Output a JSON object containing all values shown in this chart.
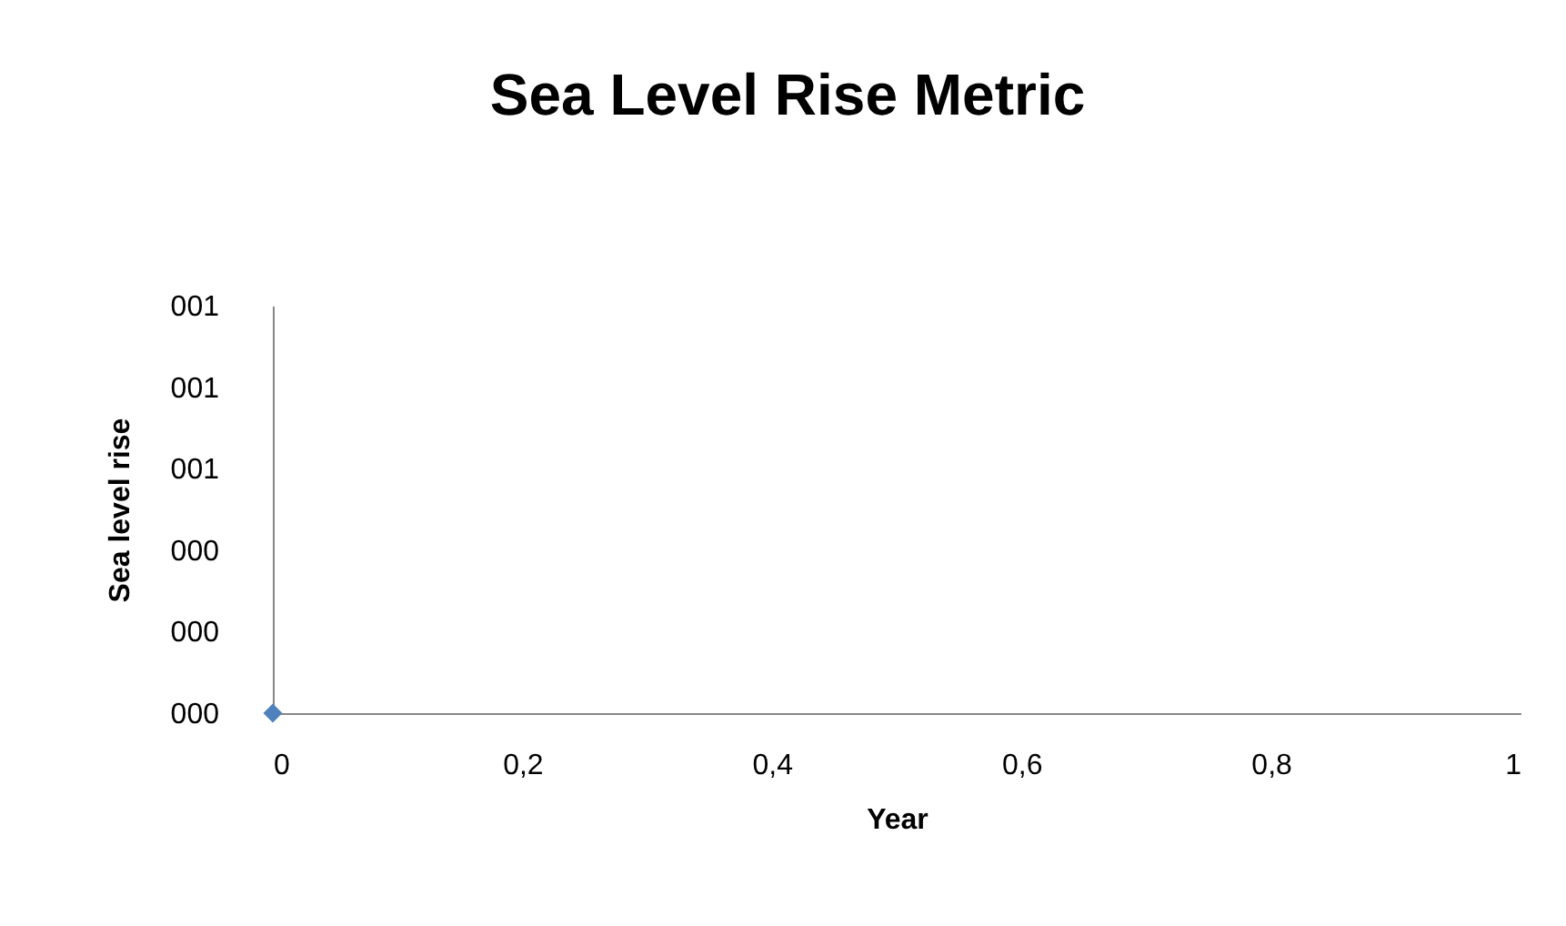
{
  "chart_data": {
    "type": "scatter",
    "title": "Sea Level Rise Metric",
    "xlabel": "Year",
    "ylabel": "Sea level rise",
    "x": [
      0
    ],
    "series": [
      {
        "color": "#4f81bd",
        "values": [
          0
        ]
      }
    ],
    "marker": "diamond",
    "grid": false,
    "xlim": [
      0,
      1
    ],
    "xticks": [
      0,
      {
        "value": 0.2,
        "label": "0,2"
      },
      {
        "value": 0.4,
        "label": "0,4"
      },
      {
        "value": 0.6,
        "label": "0,6"
      },
      {
        "value": 0.8,
        "label": "0,8"
      },
      1
    ],
    "ylim": [
      0,
      1
    ],
    "yticks": [
      {
        "value": 0,
        "label": "000"
      },
      {
        "value": 0.2,
        "label": "000"
      },
      {
        "value": 0.4,
        "label": "000"
      },
      {
        "value": 0.6,
        "label": "001"
      },
      {
        "value": 0.8,
        "label": "001"
      },
      {
        "value": 1,
        "label": "001"
      }
    ]
  }
}
